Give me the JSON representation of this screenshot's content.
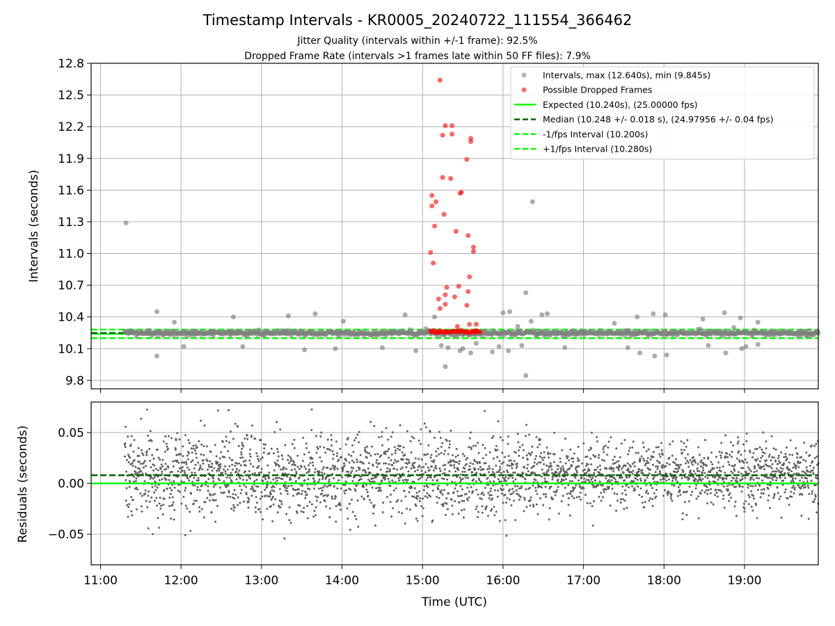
{
  "figure": {
    "title": "Timestamp Intervals - KR0005_20240722_111554_366462",
    "subtitle_1": "Jitter Quality (intervals within +/-1 frame): 92.5%",
    "subtitle_2": "Dropped Frame Rate (intervals >1 frames late within 50 FF files): 7.9%"
  },
  "colors": {
    "intervals": "#808080",
    "dropped": "#ff0000",
    "expected": "#00ff00",
    "median": "#006400",
    "grid": "#b0b0b0",
    "residuals": "#606060"
  },
  "chart_data": [
    {
      "type": "scatter",
      "id": "top",
      "ylabel": "Intervals (seconds)",
      "ylim": [
        9.72,
        12.8
      ],
      "xlim": [
        "10:53",
        "19:55"
      ],
      "yticks": [
        "9.8",
        "10.1",
        "10.4",
        "10.7",
        "11.0",
        "11.3",
        "11.6",
        "11.9",
        "12.2",
        "12.5",
        "12.8"
      ],
      "grid": true,
      "legend_position": "top-right",
      "legend": [
        {
          "label": "Intervals, max (12.640s), min (9.845s)",
          "kind": "dot-gray"
        },
        {
          "label": "Possible Dropped Frames",
          "kind": "dot-red"
        },
        {
          "label": "Expected (10.240s), (25.00000 fps)",
          "kind": "line-expected"
        },
        {
          "label": "Median (10.248 +/- 0.018 s), (24.97956 +/- 0.04 fps)",
          "kind": "line-median"
        },
        {
          "label": "-1/fps Interval (10.200s)",
          "kind": "line-minus"
        },
        {
          "label": "+1/fps Interval (10.280s)",
          "kind": "line-plus"
        }
      ],
      "lines": {
        "expected": 10.24,
        "median": 10.248,
        "minus": 10.2,
        "plus": 10.28
      },
      "baseline_band": {
        "x_start": "11:18",
        "x_end": "19:55",
        "y_low": 10.2,
        "y_high": 10.28
      },
      "outliers": [
        {
          "x": "11:19",
          "y": 11.29
        },
        {
          "x": "11:42",
          "y": 10.45
        },
        {
          "x": "11:42",
          "y": 10.03
        },
        {
          "x": "11:55",
          "y": 10.35
        },
        {
          "x": "12:02",
          "y": 10.12
        },
        {
          "x": "12:39",
          "y": 10.4
        },
        {
          "x": "12:46",
          "y": 10.12
        },
        {
          "x": "13:20",
          "y": 10.41
        },
        {
          "x": "13:32",
          "y": 10.09
        },
        {
          "x": "13:40",
          "y": 10.43
        },
        {
          "x": "13:55",
          "y": 10.1
        },
        {
          "x": "14:01",
          "y": 10.36
        },
        {
          "x": "14:30",
          "y": 10.11
        },
        {
          "x": "14:47",
          "y": 10.42
        },
        {
          "x": "14:55",
          "y": 10.08
        },
        {
          "x": "15:09",
          "y": 10.4
        },
        {
          "x": "15:14",
          "y": 10.13
        },
        {
          "x": "15:17",
          "y": 9.93
        },
        {
          "x": "15:19",
          "y": 10.11
        },
        {
          "x": "15:28",
          "y": 10.08
        },
        {
          "x": "15:30",
          "y": 10.1
        },
        {
          "x": "15:36",
          "y": 10.06
        },
        {
          "x": "15:40",
          "y": 10.15
        },
        {
          "x": "15:52",
          "y": 10.07
        },
        {
          "x": "15:57",
          "y": 10.12
        },
        {
          "x": "16:00",
          "y": 10.44
        },
        {
          "x": "16:04",
          "y": 10.08
        },
        {
          "x": "16:05",
          "y": 10.45
        },
        {
          "x": "16:11",
          "y": 10.31
        },
        {
          "x": "16:14",
          "y": 10.13
        },
        {
          "x": "16:17",
          "y": 10.63
        },
        {
          "x": "16:17",
          "y": 9.845
        },
        {
          "x": "16:21",
          "y": 10.36
        },
        {
          "x": "16:22",
          "y": 11.49
        },
        {
          "x": "16:29",
          "y": 10.42
        },
        {
          "x": "16:33",
          "y": 10.43
        },
        {
          "x": "16:46",
          "y": 10.11
        },
        {
          "x": "17:23",
          "y": 10.34
        },
        {
          "x": "17:33",
          "y": 10.11
        },
        {
          "x": "17:40",
          "y": 10.4
        },
        {
          "x": "17:42",
          "y": 10.06
        },
        {
          "x": "17:52",
          "y": 10.43
        },
        {
          "x": "17:53",
          "y": 10.03
        },
        {
          "x": "18:01",
          "y": 10.42
        },
        {
          "x": "18:02",
          "y": 10.04
        },
        {
          "x": "18:29",
          "y": 10.38
        },
        {
          "x": "18:33",
          "y": 10.13
        },
        {
          "x": "18:45",
          "y": 10.44
        },
        {
          "x": "18:46",
          "y": 10.06
        },
        {
          "x": "18:52",
          "y": 10.3
        },
        {
          "x": "18:57",
          "y": 10.39
        },
        {
          "x": "18:58",
          "y": 10.1
        },
        {
          "x": "19:01",
          "y": 10.12
        },
        {
          "x": "19:10",
          "y": 10.35
        },
        {
          "x": "19:10",
          "y": 10.14
        }
      ],
      "dropped_frames": [
        {
          "x": "15:06",
          "y": 11.01
        },
        {
          "x": "15:07",
          "y": 11.55
        },
        {
          "x": "15:07",
          "y": 11.45
        },
        {
          "x": "15:08",
          "y": 10.91
        },
        {
          "x": "15:09",
          "y": 11.26
        },
        {
          "x": "15:10",
          "y": 11.49
        },
        {
          "x": "15:12",
          "y": 10.57
        },
        {
          "x": "15:13",
          "y": 10.48
        },
        {
          "x": "15:13",
          "y": 12.64
        },
        {
          "x": "15:15",
          "y": 12.12
        },
        {
          "x": "15:15",
          "y": 11.72
        },
        {
          "x": "15:16",
          "y": 11.37
        },
        {
          "x": "15:17",
          "y": 12.21
        },
        {
          "x": "15:17",
          "y": 10.52
        },
        {
          "x": "15:17",
          "y": 10.61
        },
        {
          "x": "15:18",
          "y": 10.68
        },
        {
          "x": "15:21",
          "y": 11.71
        },
        {
          "x": "15:22",
          "y": 12.21
        },
        {
          "x": "15:22",
          "y": 12.13
        },
        {
          "x": "15:24",
          "y": 10.59
        },
        {
          "x": "15:25",
          "y": 11.21
        },
        {
          "x": "15:26",
          "y": 10.31
        },
        {
          "x": "15:27",
          "y": 10.69
        },
        {
          "x": "15:28",
          "y": 11.57
        },
        {
          "x": "15:29",
          "y": 11.58
        },
        {
          "x": "15:33",
          "y": 11.89
        },
        {
          "x": "15:33",
          "y": 10.51
        },
        {
          "x": "15:34",
          "y": 11.17
        },
        {
          "x": "15:34",
          "y": 10.64
        },
        {
          "x": "15:35",
          "y": 10.33
        },
        {
          "x": "15:35",
          "y": 10.78
        },
        {
          "x": "15:36",
          "y": 12.09
        },
        {
          "x": "15:36",
          "y": 12.06
        },
        {
          "x": "15:38",
          "y": 11.06
        },
        {
          "x": "15:38",
          "y": 11.02
        },
        {
          "x": "15:40",
          "y": 10.33
        },
        {
          "x": "15:40",
          "y": 10.27
        }
      ],
      "dropped_band": {
        "x_start": "15:06",
        "x_end": "15:43",
        "y": 10.26
      }
    },
    {
      "type": "scatter",
      "id": "bottom",
      "ylabel": "Residuals (seconds)",
      "xlabel": "Time (UTC)",
      "ylim": [
        -0.08,
        0.08
      ],
      "yticks": [
        "−0.05",
        "0.00",
        "0.05"
      ],
      "xticks": [
        "11:00",
        "12:00",
        "13:00",
        "14:00",
        "15:00",
        "16:00",
        "17:00",
        "18:00",
        "19:00"
      ],
      "grid": true,
      "lines": {
        "expected": 0.0,
        "median": 0.008
      },
      "residuals": {
        "x_start": "11:18",
        "x_end": "19:55",
        "count": 2900,
        "std": 0.018,
        "mean": 0.008
      }
    }
  ]
}
